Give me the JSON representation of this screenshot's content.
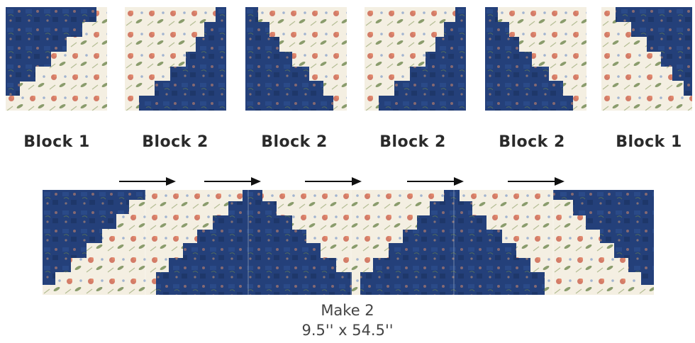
{
  "blocks": [
    {
      "label": "Block 1"
    },
    {
      "label": "Block 2"
    },
    {
      "label": "Block 2"
    },
    {
      "label": "Block 2"
    },
    {
      "label": "Block 2"
    },
    {
      "label": "Block 1"
    }
  ],
  "caption": {
    "make": "Make 2",
    "size": "9.5'' x 54.5''"
  },
  "colors": {
    "navy": "#24407a",
    "cream": "#f4efe2",
    "floral_red": "#c8553f",
    "floral_green": "#5d7a3a"
  }
}
